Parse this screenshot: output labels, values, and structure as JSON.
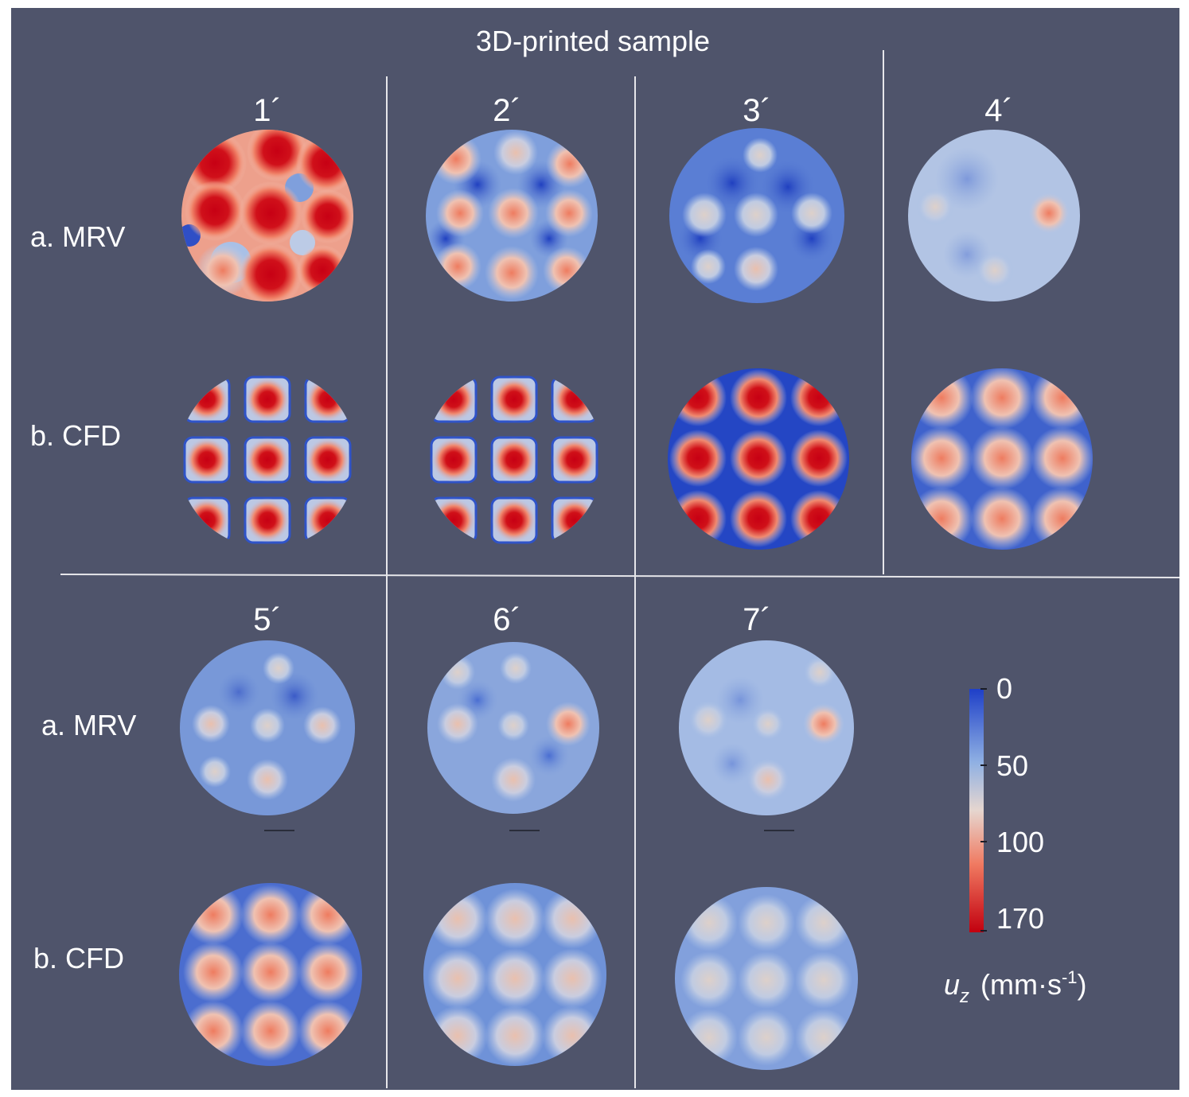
{
  "figure": {
    "title": "3D-printed sample",
    "row_labels": {
      "mrv": "a. MRV",
      "cfd": "b. CFD"
    },
    "samples": [
      "1´",
      "2´",
      "3´",
      "4´",
      "5´",
      "6´",
      "7´"
    ],
    "colorbar": {
      "ticks": [
        "0",
        "50",
        "100",
        "170"
      ],
      "label_var": "u",
      "label_sub": "z",
      "label_unit_open": "(mm·s",
      "label_sup": "-1",
      "label_unit_close": ")",
      "colors": [
        "#1e3fc8",
        "#8fb0e3",
        "#e6d6cf",
        "#f07a61",
        "#c2000f"
      ]
    },
    "colors": {
      "background": "#4f546b",
      "divider": "#e6e6ea",
      "low": "#2446c4",
      "mid": "#c8d4e6",
      "high": "#c50012"
    }
  }
}
